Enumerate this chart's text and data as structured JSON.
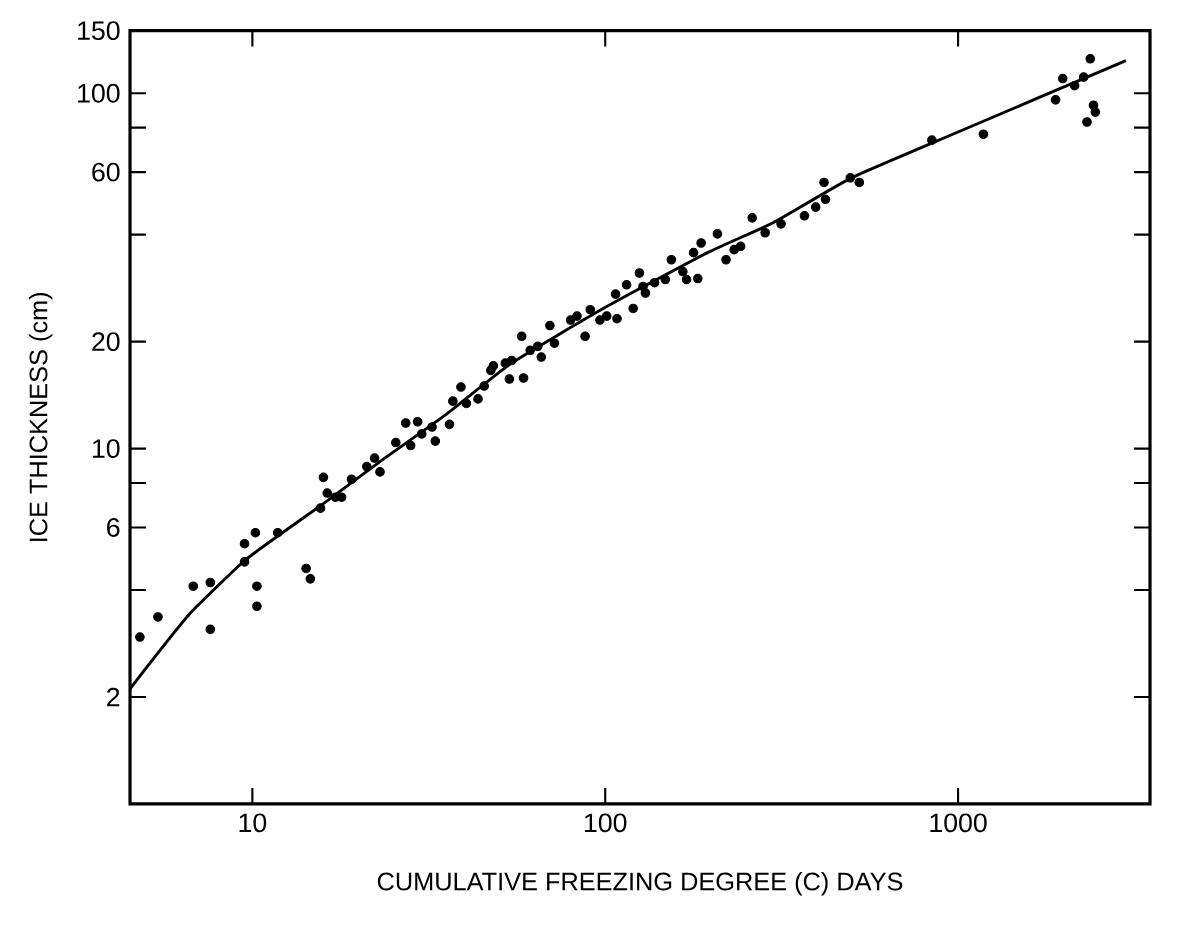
{
  "chart_data": {
    "type": "scatter",
    "xlabel": "CUMULATIVE FREEZING DEGREE (C) DAYS",
    "ylabel": "ICE THICKNESS (cm)",
    "log": "xy",
    "xlim": [
      4.5,
      3500
    ],
    "ylim": [
      1,
      150
    ],
    "xticks": [
      10,
      100,
      1000
    ],
    "yticks": [
      2,
      {
        "value": 4,
        "label": null
      },
      6,
      {
        "value": 8,
        "label": null
      },
      10,
      20,
      {
        "value": 40,
        "label": null
      },
      60,
      {
        "value": 80,
        "label": null
      },
      100,
      150
    ],
    "series": [
      {
        "marker": "circle",
        "color": "#000000",
        "x": [
          4.8,
          5.4,
          6.8,
          7.6,
          7.6,
          9.5,
          9.5,
          10.2,
          10.3,
          10.3,
          11.8,
          14.2,
          14.6,
          15.6,
          15.9,
          16.3,
          17.2,
          17.9,
          19.1,
          21.1,
          22.2,
          23.0,
          25.5,
          27.2,
          28.1,
          29.4,
          30.2,
          33.0,
          32.3,
          36.2,
          37.0,
          39.0,
          40.4,
          43.6,
          45.4,
          48.2,
          52.1,
          53.5,
          58.0,
          58.7,
          61.3,
          65.9,
          69.7,
          71.8,
          79.8,
          87.7,
          90.7,
          96.6,
          101,
          107,
          108,
          115,
          120,
          125,
          130,
          138,
          148,
          154,
          166,
          170,
          183,
          178,
          187,
          208,
          220,
          242,
          261,
          284,
          315,
          367,
          395,
          421,
          417,
          495,
          525,
          843,
          1180,
          1890,
          1980,
          2140,
          2270,
          2370,
          2320,
          2420,
          2450,
          47.4,
          54.3,
          64.4,
          83.2,
          128,
          232
        ],
        "values": [
          2.95,
          3.36,
          4.1,
          4.2,
          3.1,
          4.8,
          5.4,
          5.8,
          4.1,
          3.6,
          5.8,
          4.6,
          4.3,
          6.8,
          8.3,
          7.5,
          7.3,
          7.3,
          8.2,
          8.9,
          9.4,
          8.6,
          10.4,
          11.8,
          10.2,
          11.9,
          11.0,
          10.5,
          11.5,
          11.7,
          13.6,
          14.9,
          13.4,
          13.8,
          15.0,
          17.1,
          17.4,
          15.7,
          20.7,
          15.8,
          18.9,
          18.1,
          22.2,
          19.8,
          23.0,
          20.7,
          24.6,
          23.0,
          23.6,
          27.2,
          23.2,
          28.9,
          24.8,
          31.2,
          27.4,
          29.3,
          29.9,
          34.0,
          31.5,
          29.9,
          30.1,
          35.6,
          37.9,
          40.2,
          34.0,
          37.1,
          44.6,
          40.5,
          42.9,
          45.2,
          47.8,
          50.3,
          56.1,
          57.8,
          56.1,
          73.8,
          76.7,
          95.8,
          110,
          105,
          111,
          125,
          83.0,
          92.5,
          88.5,
          16.6,
          17.7,
          19.4,
          23.6,
          28.6,
          36.3
        ]
      },
      {
        "type": "line",
        "marker": "none",
        "line_style": "solid",
        "color": "#000000",
        "x": [
          4.5,
          5.43,
          6.73,
          9.46,
          11.97,
          15.8,
          23.2,
          35.5,
          54.3,
          101,
          195,
          299,
          499,
          1000,
          2990
        ],
        "values": [
          2.11,
          2.68,
          3.48,
          4.82,
          5.73,
          6.97,
          9.25,
          12.5,
          17.4,
          25.1,
          35.6,
          43.2,
          57.8,
          77.8,
          123.6
        ]
      }
    ]
  }
}
